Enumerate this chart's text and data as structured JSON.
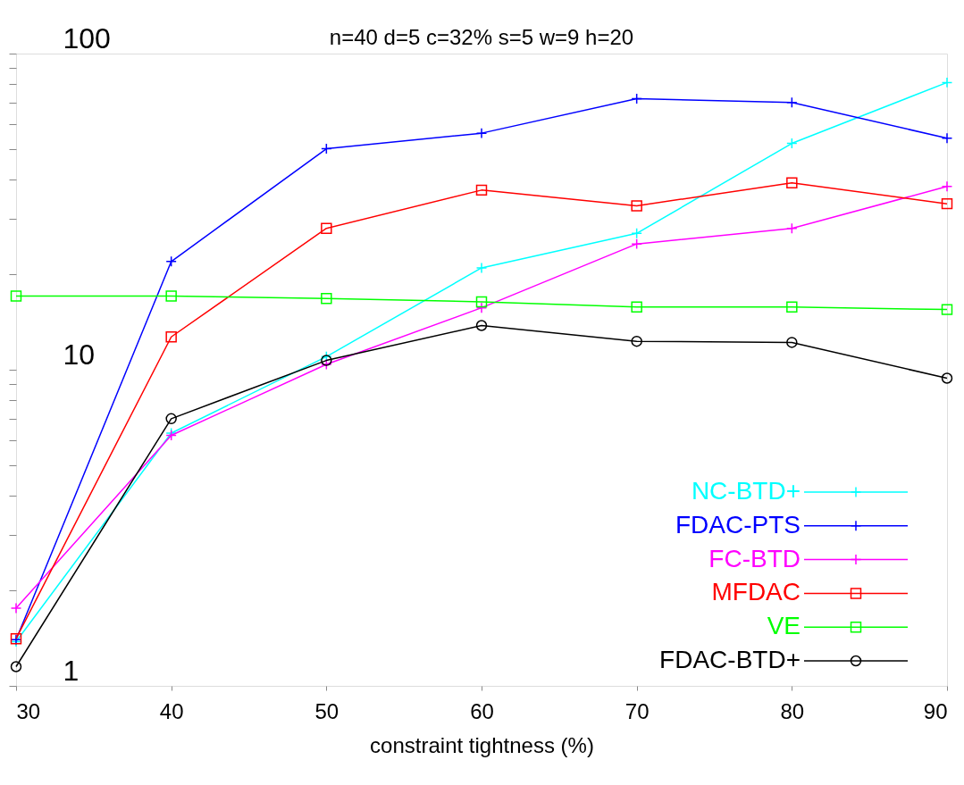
{
  "chart_data": {
    "type": "line",
    "title": "n=40 d=5 c=32% s=5 w=9 h=20",
    "xlabel": "constraint tightness (%)",
    "log": "y",
    "grid": false,
    "legend": "bottom right",
    "line_style": "solid",
    "x": [
      30,
      40,
      50,
      60,
      70,
      80,
      90
    ],
    "xlim": [
      30,
      90
    ],
    "xticks": [
      30,
      40,
      50,
      60,
      70,
      80,
      90
    ],
    "ylim": [
      1,
      100
    ],
    "yticks": [
      1,
      {
        "value": 2,
        "label": null
      },
      {
        "value": 3,
        "label": null
      },
      {
        "value": 4,
        "label": null
      },
      {
        "value": 5,
        "label": null
      },
      {
        "value": 6,
        "label": null
      },
      {
        "value": 7,
        "label": null
      },
      {
        "value": 8,
        "label": null
      },
      {
        "value": 9,
        "label": null
      },
      10,
      {
        "value": 20,
        "label": null
      },
      {
        "value": 30,
        "label": null
      },
      {
        "value": 40,
        "label": null
      },
      {
        "value": 50,
        "label": null
      },
      {
        "value": 60,
        "label": null
      },
      {
        "value": 70,
        "label": null
      },
      {
        "value": 80,
        "label": null
      },
      {
        "value": 90,
        "label": null
      },
      100
    ],
    "series": [
      {
        "name": "NC-BTD+",
        "color": "#00ffff",
        "marker": "cross",
        "values": [
          1.38,
          6.3,
          11,
          21,
          27,
          52,
          81
        ]
      },
      {
        "name": "FDAC-PTS",
        "color": "#0000ff",
        "marker": "cross",
        "values": [
          1.4,
          22,
          50,
          56,
          72,
          70,
          54
        ]
      },
      {
        "name": "FC-BTD",
        "color": "#ff00ff",
        "marker": "cross",
        "values": [
          1.76,
          6.2,
          10.4,
          15.7,
          25,
          28,
          38
        ]
      },
      {
        "name": "MFDAC",
        "color": "#ff0000",
        "marker": "square",
        "values": [
          1.41,
          12.7,
          28,
          37,
          33,
          39,
          33.5
        ]
      },
      {
        "name": "VE",
        "color": "#00ff00",
        "marker": "square",
        "values": [
          17.1,
          17.1,
          16.8,
          16.4,
          15.8,
          15.8,
          15.5
        ]
      },
      {
        "name": "FDAC-BTD+",
        "color": "#000000",
        "marker": "circle",
        "values": [
          1.15,
          7,
          10.7,
          13.8,
          12.3,
          12.2,
          9.4
        ]
      }
    ]
  }
}
